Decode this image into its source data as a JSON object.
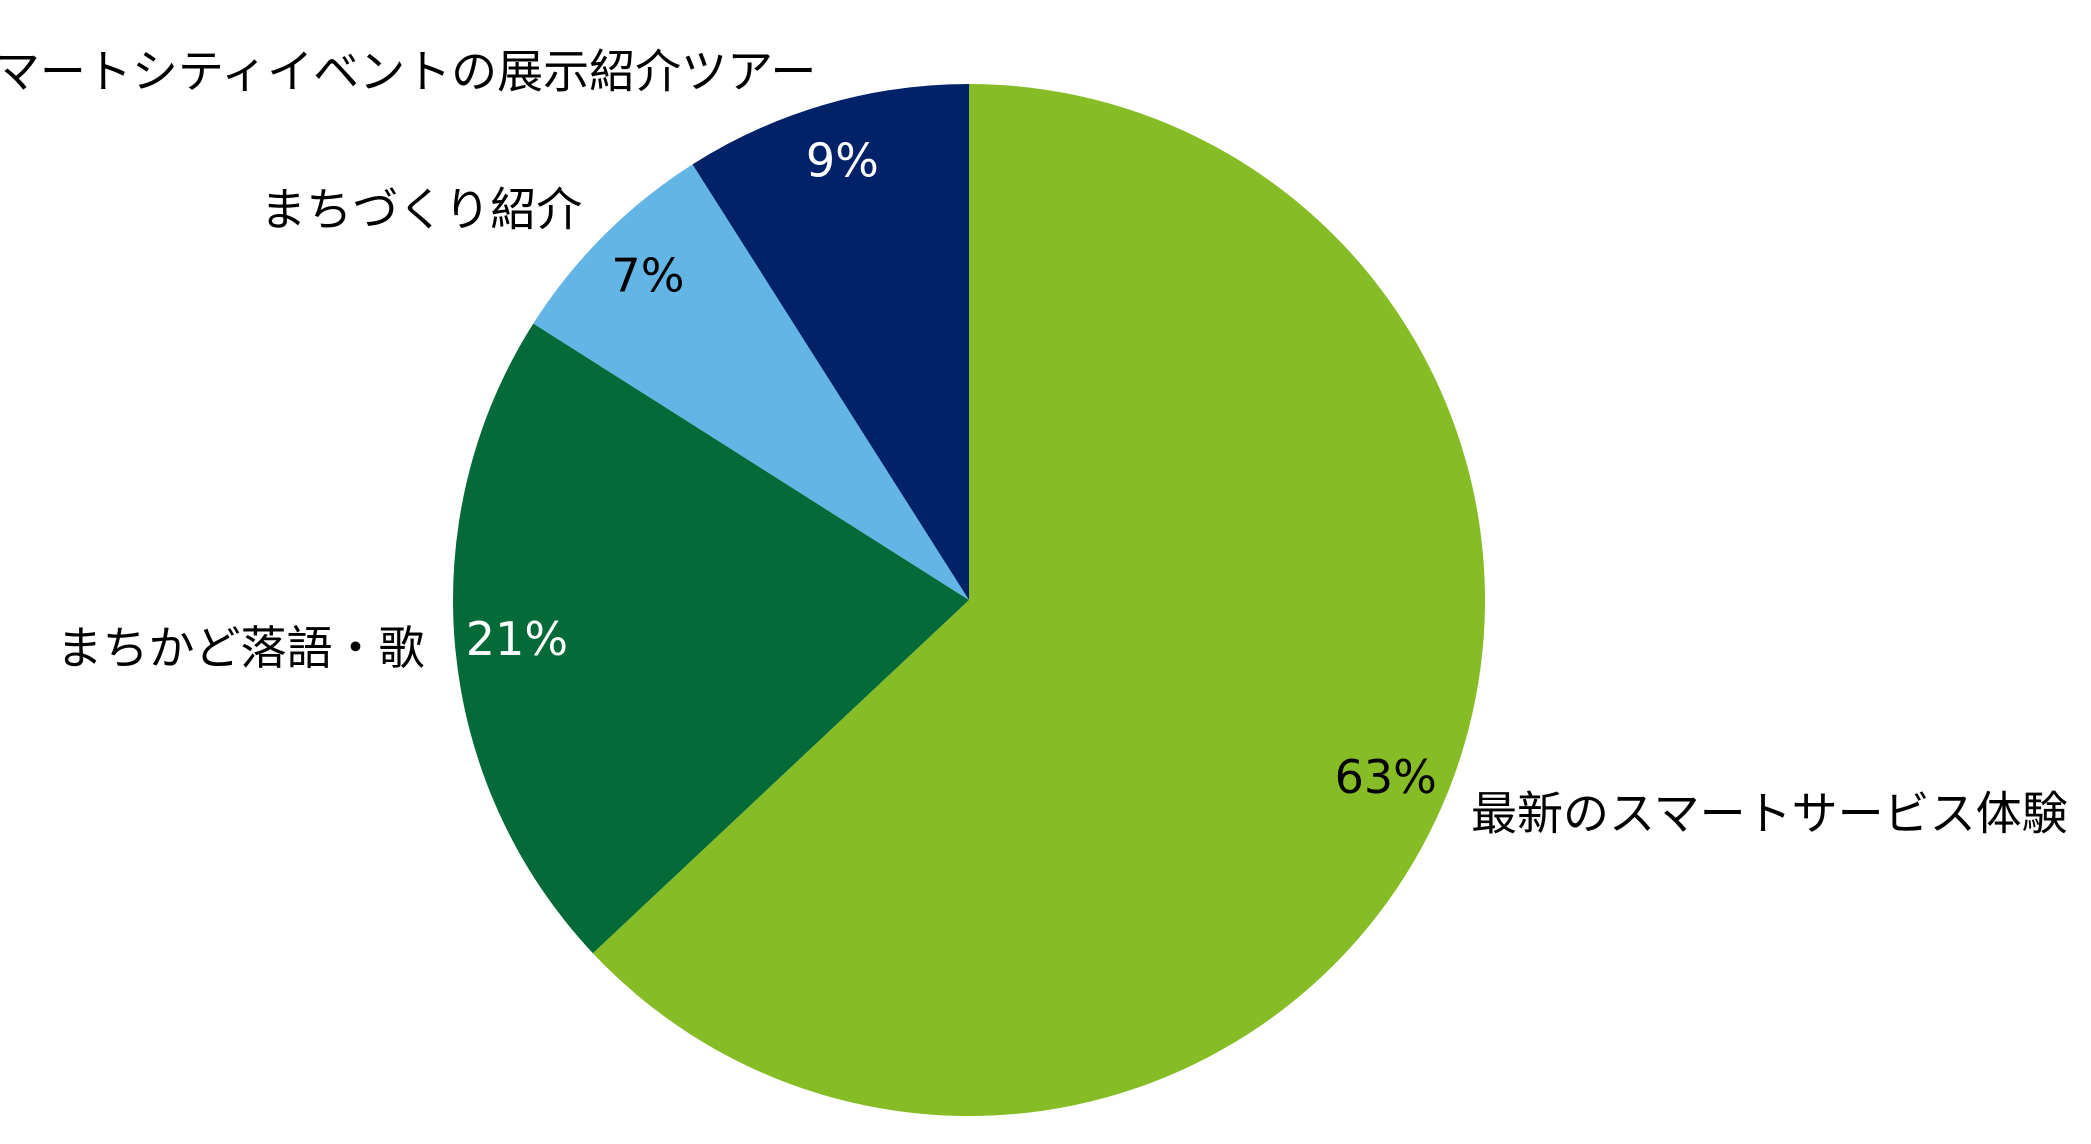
{
  "chart_data": {
    "type": "pie",
    "categories": [
      "最新のスマートサービス体験",
      "まちかど落語・歌",
      "まちづくり紹介",
      "スマートシティイベントの展示紹介ツアー"
    ],
    "values": [
      63,
      21,
      7,
      9
    ],
    "value_labels": [
      "63%",
      "21%",
      "7%",
      "9%"
    ],
    "colors": [
      "#86bc25",
      "#046a38",
      "#62b5e5",
      "#012169"
    ]
  }
}
